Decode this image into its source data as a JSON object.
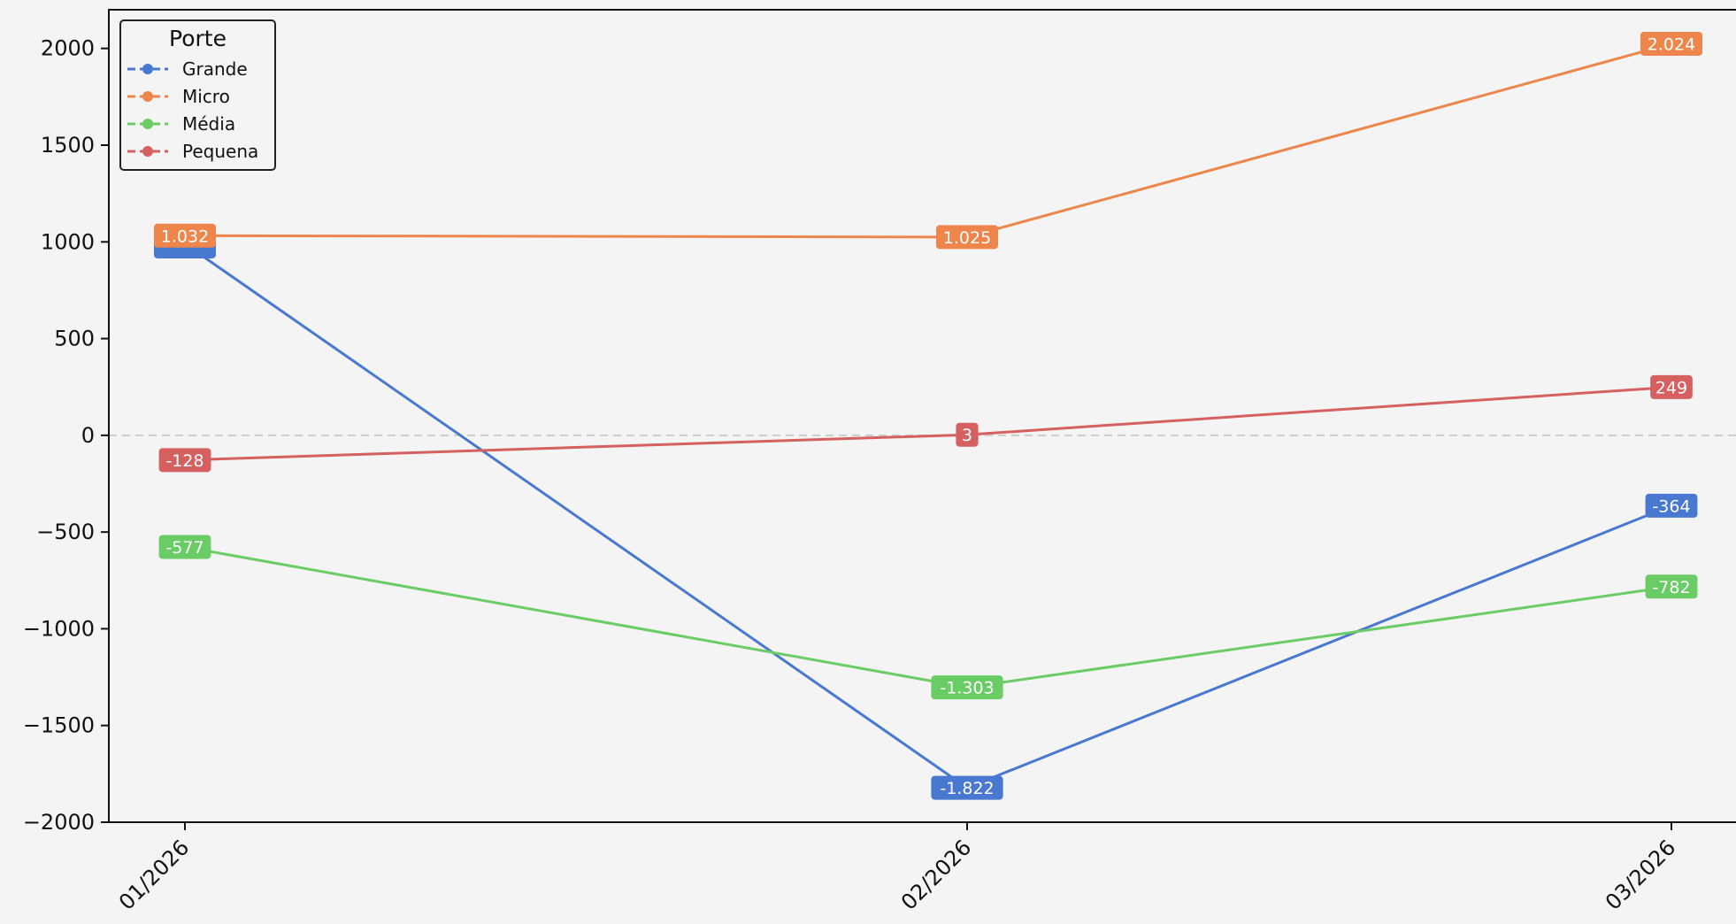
{
  "chart_data": {
    "type": "line",
    "title": "",
    "xlabel": "",
    "ylabel": "",
    "categories": [
      "01/2026",
      "02/2026",
      "03/2026"
    ],
    "ylim": [
      -2000,
      2200
    ],
    "yticks": [
      -2000,
      -1500,
      -1000,
      -500,
      0,
      500,
      1000,
      1500,
      2000
    ],
    "ytick_labels": [
      "−2000",
      "−1500",
      "−1000",
      "−500",
      "0",
      "500",
      "1000",
      "1500",
      "2000"
    ],
    "grid": false,
    "zero_line": true,
    "legend": {
      "title": "Porte",
      "placement": "top-left"
    },
    "series": [
      {
        "name": "Grande",
        "color": "#4878d0",
        "values": [
          990,
          -1822,
          -364
        ],
        "labels": [
          "",
          "-1.822",
          "-364"
        ]
      },
      {
        "name": "Micro",
        "color": "#ee854a",
        "values": [
          1032,
          1025,
          2024
        ],
        "labels": [
          "1.032",
          "1.025",
          "2.024"
        ]
      },
      {
        "name": "Média",
        "color": "#6acc64",
        "values": [
          -577,
          -1303,
          -782
        ],
        "labels": [
          "-577",
          "-1.303",
          "-782"
        ]
      },
      {
        "name": "Pequena",
        "color": "#d65f5f",
        "values": [
          -128,
          3,
          249
        ],
        "labels": [
          "-128",
          "3",
          "249"
        ]
      }
    ]
  }
}
